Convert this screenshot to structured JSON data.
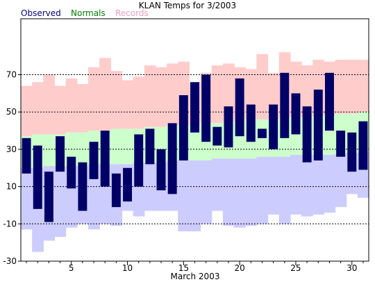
{
  "colors": {
    "observed": "#000066",
    "normals_band": "#ccffcc",
    "records_high_band": "#ffcccc",
    "records_low_band": "#ccccff",
    "legend_observed": "#000080",
    "legend_normals": "#008000",
    "legend_records": "#e8a0b8",
    "grid": "#000000"
  },
  "legend": {
    "observed": "Observed",
    "normals": "Normals",
    "records": "Records"
  },
  "chart_data": {
    "type": "bar",
    "title": "KLAN Temps for 3/2003",
    "xlabel": "March 2003",
    "ylabel": "",
    "xlim": [
      0.5,
      31.5
    ],
    "ylim": [
      -30,
      100
    ],
    "yticks": [
      -30,
      -10,
      10,
      30,
      50,
      70
    ],
    "xticks": [
      5,
      10,
      15,
      20,
      25,
      30
    ],
    "grid": "dashed horizontal at y ticks",
    "days": [
      1,
      2,
      3,
      4,
      5,
      6,
      7,
      8,
      9,
      10,
      11,
      12,
      13,
      14,
      15,
      16,
      17,
      18,
      19,
      20,
      21,
      22,
      23,
      24,
      25,
      26,
      27,
      28,
      29,
      30,
      31
    ],
    "observed_high": [
      36,
      32,
      18,
      37,
      26,
      23,
      34,
      40,
      17,
      20,
      38,
      41,
      30,
      44,
      59,
      66,
      70,
      42,
      53,
      68,
      54,
      41,
      54,
      71,
      60,
      53,
      62,
      71,
      40,
      39,
      45
    ],
    "observed_low": [
      17,
      -2,
      -9,
      18,
      9,
      -3,
      14,
      10,
      -1,
      2,
      10,
      22,
      8,
      6,
      24,
      39,
      34,
      32,
      31,
      37,
      34,
      36,
      30,
      36,
      38,
      23,
      24,
      40,
      26,
      18,
      19
    ],
    "normal_high": [
      37,
      38,
      38,
      38,
      39,
      39,
      40,
      40,
      41,
      41,
      41,
      42,
      42,
      43,
      43,
      43,
      44,
      44,
      45,
      45,
      46,
      46,
      46,
      47,
      47,
      47,
      48,
      48,
      49,
      49,
      50
    ],
    "normal_low": [
      20,
      20,
      21,
      21,
      21,
      21,
      22,
      22,
      22,
      22,
      23,
      23,
      23,
      24,
      24,
      24,
      24,
      25,
      25,
      25,
      25,
      26,
      26,
      26,
      27,
      27,
      27,
      27,
      28,
      28,
      28
    ],
    "record_high": [
      64,
      66,
      70,
      64,
      68,
      65,
      74,
      79,
      72,
      67,
      69,
      75,
      74,
      76,
      77,
      66,
      71,
      75,
      76,
      74,
      73,
      81,
      71,
      82,
      77,
      75,
      78,
      77,
      78,
      78,
      78
    ],
    "record_low": [
      -13,
      -25,
      -19,
      -17,
      -12,
      -10,
      -13,
      -10,
      -11,
      -3,
      -6,
      -3,
      -3,
      -3,
      -14,
      -14,
      -10,
      -3,
      -11,
      -12,
      -11,
      -10,
      -5,
      -10,
      -5,
      -6,
      -5,
      -4,
      -1,
      6,
      4
    ]
  }
}
